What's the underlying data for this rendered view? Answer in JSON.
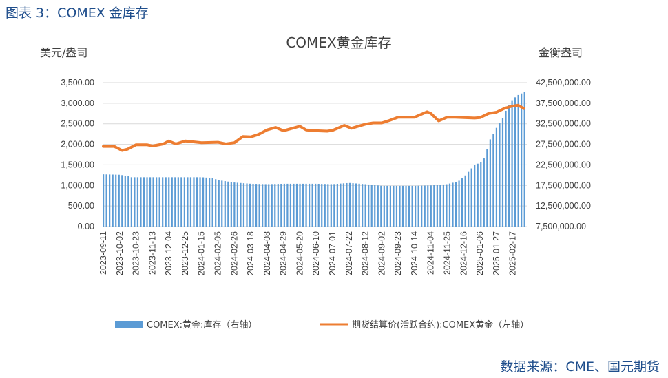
{
  "figure": {
    "caption": "图表 3：COMEX 金库存",
    "source": "数据来源：CME、国元期货"
  },
  "chart_data": {
    "type": "bar+line",
    "title": "COMEX黄金库存",
    "left_axis": {
      "unit": "美元/盎司",
      "ylim": [
        0,
        3500
      ],
      "ticks": [
        "0.00",
        "500.00",
        "1,000.00",
        "1,500.00",
        "2,000.00",
        "2,500.00",
        "3,000.00",
        "3,500.00"
      ]
    },
    "right_axis": {
      "unit": "金衡盎司",
      "ylim": [
        7500000,
        42500000
      ],
      "ticks": [
        "7,500,000.00",
        "12,500,000.00",
        "17,500,000.00",
        "22,500,000.00",
        "27,500,000.00",
        "32,500,000.00",
        "37,500,000.00",
        "42,500,000.00"
      ]
    },
    "x_tick_labels": [
      "2023-09-11",
      "2023-10-02",
      "2023-10-23",
      "2023-11-13",
      "2023-12-04",
      "2023-12-25",
      "2024-01-15",
      "2024-02-05",
      "2024-02-26",
      "2024-03-18",
      "2024-04-08",
      "2024-04-29",
      "2024-05-20",
      "2024-06-10",
      "2024-07-01",
      "2024-07-22",
      "2024-08-12",
      "2024-09-02",
      "2024-09-23",
      "2024-10-14",
      "2024-11-04",
      "2024-11-25",
      "2024-12-16",
      "2025-01-06",
      "2025-01-27",
      "2025-02-17"
    ],
    "x_range": [
      "2023-09-11",
      "2025-03-07"
    ],
    "series": [
      {
        "name": "COMEX:黄金:库存（右轴）",
        "kind": "bar",
        "axis": "right",
        "color": "#5b9bd5",
        "points": [
          [
            "2023-09-11",
            20200000
          ],
          [
            "2023-10-02",
            20100000
          ],
          [
            "2023-10-12",
            19800000
          ],
          [
            "2023-10-16",
            19500000
          ],
          [
            "2023-10-23",
            19500000
          ],
          [
            "2023-11-13",
            19500000
          ],
          [
            "2023-12-04",
            19500000
          ],
          [
            "2023-12-25",
            19500000
          ],
          [
            "2024-01-15",
            19500000
          ],
          [
            "2024-01-29",
            19300000
          ],
          [
            "2024-02-05",
            18800000
          ],
          [
            "2024-02-26",
            18200000
          ],
          [
            "2024-03-18",
            17900000
          ],
          [
            "2024-04-08",
            17800000
          ],
          [
            "2024-04-29",
            17900000
          ],
          [
            "2024-05-20",
            17900000
          ],
          [
            "2024-06-10",
            17900000
          ],
          [
            "2024-07-01",
            17800000
          ],
          [
            "2024-07-22",
            18100000
          ],
          [
            "2024-08-12",
            17800000
          ],
          [
            "2024-09-02",
            17400000
          ],
          [
            "2024-09-23",
            17400000
          ],
          [
            "2024-10-14",
            17400000
          ],
          [
            "2024-11-04",
            17500000
          ],
          [
            "2024-11-25",
            17800000
          ],
          [
            "2024-12-09",
            18500000
          ],
          [
            "2024-12-16",
            19500000
          ],
          [
            "2024-12-23",
            21000000
          ],
          [
            "2024-12-30",
            22500000
          ],
          [
            "2025-01-06",
            23000000
          ],
          [
            "2025-01-13",
            24500000
          ],
          [
            "2025-01-17",
            28000000
          ],
          [
            "2025-01-27",
            31500000
          ],
          [
            "2025-02-03",
            33500000
          ],
          [
            "2025-02-10",
            36500000
          ],
          [
            "2025-02-17",
            38500000
          ],
          [
            "2025-02-24",
            39500000
          ],
          [
            "2025-03-07",
            40500000
          ]
        ]
      },
      {
        "name": "期货结算价(活跃合约):COMEX黄金（左轴）",
        "kind": "line",
        "axis": "left",
        "color": "#ed7d31",
        "points": [
          [
            "2023-09-11",
            1950
          ],
          [
            "2023-09-25",
            1950
          ],
          [
            "2023-10-05",
            1850
          ],
          [
            "2023-10-12",
            1880
          ],
          [
            "2023-10-23",
            1990
          ],
          [
            "2023-11-06",
            1990
          ],
          [
            "2023-11-13",
            1960
          ],
          [
            "2023-11-27",
            2010
          ],
          [
            "2023-12-04",
            2080
          ],
          [
            "2023-12-13",
            2010
          ],
          [
            "2023-12-25",
            2080
          ],
          [
            "2024-01-15",
            2040
          ],
          [
            "2024-02-05",
            2050
          ],
          [
            "2024-02-15",
            2010
          ],
          [
            "2024-02-26",
            2040
          ],
          [
            "2024-03-08",
            2190
          ],
          [
            "2024-03-18",
            2180
          ],
          [
            "2024-03-28",
            2240
          ],
          [
            "2024-04-08",
            2350
          ],
          [
            "2024-04-19",
            2410
          ],
          [
            "2024-04-29",
            2330
          ],
          [
            "2024-05-20",
            2440
          ],
          [
            "2024-05-28",
            2350
          ],
          [
            "2024-06-10",
            2330
          ],
          [
            "2024-06-24",
            2320
          ],
          [
            "2024-07-01",
            2340
          ],
          [
            "2024-07-16",
            2460
          ],
          [
            "2024-07-25",
            2390
          ],
          [
            "2024-08-12",
            2490
          ],
          [
            "2024-08-22",
            2520
          ],
          [
            "2024-09-02",
            2520
          ],
          [
            "2024-09-12",
            2580
          ],
          [
            "2024-09-23",
            2660
          ],
          [
            "2024-10-14",
            2660
          ],
          [
            "2024-10-30",
            2790
          ],
          [
            "2024-11-04",
            2750
          ],
          [
            "2024-11-14",
            2570
          ],
          [
            "2024-11-25",
            2660
          ],
          [
            "2024-12-05",
            2660
          ],
          [
            "2024-12-16",
            2650
          ],
          [
            "2024-12-30",
            2640
          ],
          [
            "2025-01-06",
            2650
          ],
          [
            "2025-01-17",
            2750
          ],
          [
            "2025-01-27",
            2780
          ],
          [
            "2025-02-07",
            2880
          ],
          [
            "2025-02-17",
            2930
          ],
          [
            "2025-02-24",
            2950
          ],
          [
            "2025-03-03",
            2870
          ]
        ]
      }
    ],
    "legend": "bottom"
  }
}
